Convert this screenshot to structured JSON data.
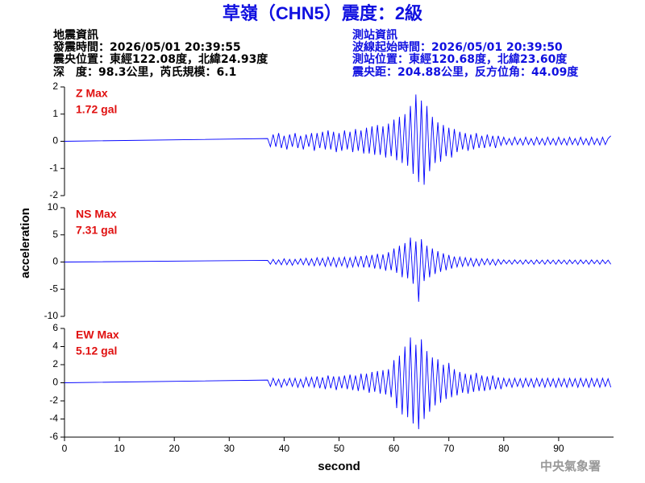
{
  "header": {
    "title": "草嶺（CHN5）震度：2級",
    "left": [
      "地震資訊",
      "發震時間：2026/05/01 20:39:55",
      "震央位置：東經122.08度，北緯24.93度",
      "深　度：98.3公里，芮氏規模：6.1"
    ],
    "right": [
      "測站資訊",
      "波線起始時間：2026/05/01 20:39:50",
      "測站位置：東經120.68度，北緯23.60度",
      "震央距：204.88公里，反方位角：44.09度"
    ]
  },
  "footer": "中央氣象署",
  "ylabel": "acceleration",
  "chart_data": [
    {
      "type": "line",
      "annotations": [
        "Z Max",
        "1.72 gal"
      ],
      "color": "#0000ff",
      "xlim": [
        0,
        100
      ],
      "ylim": [
        -2,
        2
      ],
      "yticks": [
        -2,
        -1,
        0,
        1,
        2
      ],
      "x": [
        0,
        37,
        37.5,
        38,
        38.5,
        39,
        39.5,
        40,
        40.5,
        41,
        41.5,
        42,
        42.5,
        43,
        43.5,
        44,
        44.5,
        45,
        45.5,
        46,
        46.5,
        47,
        47.5,
        48,
        48.5,
        49,
        49.5,
        50,
        50.5,
        51,
        51.5,
        52,
        52.5,
        53,
        53.5,
        54,
        54.5,
        55,
        55.5,
        56,
        56.5,
        57,
        57.5,
        58,
        58.5,
        59,
        59.5,
        60,
        60.5,
        61,
        61.5,
        62,
        62.5,
        63,
        63.5,
        64,
        64.5,
        65,
        65.5,
        66,
        66.5,
        67,
        67.5,
        68,
        68.5,
        69,
        69.5,
        70,
        70.5,
        71,
        71.5,
        72,
        72.5,
        73,
        73.5,
        74,
        74.5,
        75,
        75.5,
        76,
        76.5,
        77,
        77.5,
        78,
        78.5,
        79,
        79.5,
        80,
        80.5,
        81,
        81.5,
        82,
        82.5,
        83,
        83.5,
        84,
        84.5,
        85,
        85.5,
        86,
        86.5,
        87,
        87.5,
        88,
        88.5,
        89,
        89.5,
        90,
        90.5,
        91,
        91.5,
        92,
        92.5,
        93,
        93.5,
        94,
        94.5,
        95,
        95.5,
        96,
        96.5,
        97,
        97.5,
        98,
        98.5,
        99,
        99.5
      ],
      "values": [
        0,
        0.1,
        -0.2,
        0.25,
        -0.2,
        0.3,
        -0.25,
        0.2,
        -0.3,
        0.25,
        -0.2,
        0.3,
        -0.25,
        0.2,
        -0.3,
        0.25,
        -0.2,
        0.3,
        -0.35,
        0.3,
        -0.25,
        0.35,
        -0.3,
        0.4,
        -0.3,
        0.35,
        -0.4,
        0.3,
        -0.35,
        0.4,
        -0.3,
        0.35,
        -0.4,
        0.45,
        -0.35,
        0.4,
        -0.45,
        0.5,
        -0.45,
        0.55,
        -0.5,
        0.6,
        -0.5,
        0.55,
        -0.6,
        0.65,
        -0.55,
        0.8,
        -0.7,
        0.9,
        -0.8,
        1.0,
        -0.9,
        1.3,
        -1.2,
        1.72,
        -1.5,
        1.5,
        -1.6,
        1.3,
        -1.1,
        0.9,
        -0.8,
        0.7,
        -0.75,
        0.6,
        -0.55,
        0.5,
        -0.6,
        0.45,
        -0.4,
        0.35,
        -0.3,
        0.3,
        -0.35,
        0.25,
        -0.3,
        0.3,
        -0.25,
        0.2,
        -0.25,
        0.25,
        -0.2,
        0.2,
        -0.25,
        0.2,
        -0.15,
        0.15,
        -0.12,
        0.1,
        -0.14,
        0.15,
        -0.12,
        0.1,
        -0.14,
        0.15,
        -0.12,
        0.1,
        -0.14,
        0.15,
        -0.12,
        0.1,
        -0.14,
        0.15,
        -0.12,
        0.1,
        -0.14,
        0.15,
        -0.12,
        0.1,
        -0.14,
        0.15,
        -0.12,
        0.1,
        -0.14,
        0.15,
        -0.12,
        0.1,
        -0.14,
        0.15,
        -0.12,
        0.1,
        -0.14,
        0.15,
        -0.12,
        0.1,
        0.2
      ]
    },
    {
      "type": "line",
      "annotations": [
        "NS Max",
        "7.31 gal"
      ],
      "color": "#0000ff",
      "xlim": [
        0,
        100
      ],
      "ylim": [
        -10,
        10
      ],
      "yticks": [
        -10,
        -5,
        0,
        5,
        10
      ],
      "x": [
        0,
        37,
        37.5,
        38,
        38.5,
        39,
        39.5,
        40,
        40.5,
        41,
        41.5,
        42,
        42.5,
        43,
        43.5,
        44,
        44.5,
        45,
        45.5,
        46,
        46.5,
        47,
        47.5,
        48,
        48.5,
        49,
        49.5,
        50,
        50.5,
        51,
        51.5,
        52,
        52.5,
        53,
        53.5,
        54,
        54.5,
        55,
        55.5,
        56,
        56.5,
        57,
        57.5,
        58,
        58.5,
        59,
        59.5,
        60,
        60.5,
        61,
        61.5,
        62,
        62.5,
        63,
        63.5,
        64,
        64.5,
        65,
        65.5,
        66,
        66.5,
        67,
        67.5,
        68,
        68.5,
        69,
        69.5,
        70,
        70.5,
        71,
        71.5,
        72,
        72.5,
        73,
        73.5,
        74,
        74.5,
        75,
        75.5,
        76,
        76.5,
        77,
        77.5,
        78,
        78.5,
        79,
        79.5,
        80,
        80.5,
        81,
        81.5,
        82,
        82.5,
        83,
        83.5,
        84,
        84.5,
        85,
        85.5,
        86,
        86.5,
        87,
        87.5,
        88,
        88.5,
        89,
        89.5,
        90,
        90.5,
        91,
        91.5,
        92,
        92.5,
        93,
        93.5,
        94,
        94.5,
        95,
        95.5,
        96,
        96.5,
        97,
        97.5,
        98,
        98.5,
        99,
        99.5
      ],
      "values": [
        0,
        0.3,
        -0.4,
        0.5,
        -0.4,
        0.4,
        -0.5,
        0.6,
        -0.5,
        0.5,
        -0.6,
        0.5,
        -0.4,
        0.6,
        -0.5,
        0.7,
        -0.6,
        0.6,
        -0.7,
        0.8,
        -0.6,
        0.7,
        -0.8,
        0.9,
        -0.7,
        0.8,
        -0.9,
        0.8,
        -0.7,
        0.9,
        -1.0,
        0.8,
        -0.9,
        1.0,
        -0.8,
        1.1,
        -1.0,
        1.2,
        -1.0,
        1.3,
        -1.2,
        1.5,
        -1.3,
        1.4,
        -1.6,
        1.8,
        -1.5,
        2.5,
        -2.0,
        3.0,
        -2.8,
        3.5,
        -3.0,
        4.5,
        -4.0,
        3.8,
        -7.31,
        4.2,
        -3.5,
        3.0,
        -2.8,
        2.5,
        -2.2,
        2.0,
        -1.8,
        1.6,
        -1.5,
        1.3,
        -1.2,
        1.0,
        -0.9,
        0.9,
        -0.8,
        0.8,
        -0.7,
        0.7,
        -0.8,
        0.6,
        -0.7,
        0.6,
        -0.5,
        0.6,
        -0.5,
        0.5,
        -0.6,
        0.5,
        -0.4,
        0.4,
        -0.3,
        0.35,
        -0.4,
        0.4,
        -0.3,
        0.35,
        -0.4,
        0.4,
        -0.3,
        0.35,
        -0.4,
        0.4,
        -0.3,
        0.35,
        -0.4,
        0.4,
        -0.3,
        0.35,
        -0.4,
        0.4,
        -0.3,
        0.35,
        -0.4,
        0.4,
        -0.3,
        0.35,
        -0.4,
        0.4,
        -0.3,
        0.35,
        -0.4,
        0.4,
        -0.3,
        0.35,
        -0.4,
        0.4,
        -0.3,
        0.35,
        -0.4
      ]
    },
    {
      "type": "line",
      "annotations": [
        "EW Max",
        "5.12 gal"
      ],
      "color": "#0000ff",
      "xlim": [
        0,
        100
      ],
      "ylim": [
        -6,
        6
      ],
      "yticks": [
        -6,
        -4,
        -2,
        0,
        2,
        4,
        6
      ],
      "xticks": [
        0,
        10,
        20,
        30,
        40,
        50,
        60,
        70,
        80,
        90
      ],
      "xlabel": "second",
      "x": [
        0,
        37,
        37.5,
        38,
        38.5,
        39,
        39.5,
        40,
        40.5,
        41,
        41.5,
        42,
        42.5,
        43,
        43.5,
        44,
        44.5,
        45,
        45.5,
        46,
        46.5,
        47,
        47.5,
        48,
        48.5,
        49,
        49.5,
        50,
        50.5,
        51,
        51.5,
        52,
        52.5,
        53,
        53.5,
        54,
        54.5,
        55,
        55.5,
        56,
        56.5,
        57,
        57.5,
        58,
        58.5,
        59,
        59.5,
        60,
        60.5,
        61,
        61.5,
        62,
        62.5,
        63,
        63.5,
        64,
        64.5,
        65,
        65.5,
        66,
        66.5,
        67,
        67.5,
        68,
        68.5,
        69,
        69.5,
        70,
        70.5,
        71,
        71.5,
        72,
        72.5,
        73,
        73.5,
        74,
        74.5,
        75,
        75.5,
        76,
        76.5,
        77,
        77.5,
        78,
        78.5,
        79,
        79.5,
        80,
        80.5,
        81,
        81.5,
        82,
        82.5,
        83,
        83.5,
        84,
        84.5,
        85,
        85.5,
        86,
        86.5,
        87,
        87.5,
        88,
        88.5,
        89,
        89.5,
        90,
        90.5,
        91,
        91.5,
        92,
        92.5,
        93,
        93.5,
        94,
        94.5,
        95,
        95.5,
        96,
        96.5,
        97,
        97.5,
        98,
        98.5,
        99,
        99.5
      ],
      "values": [
        0,
        0.3,
        -0.4,
        0.5,
        -0.3,
        0.4,
        -0.5,
        0.4,
        -0.3,
        0.5,
        -0.4,
        0.5,
        -0.5,
        0.4,
        -0.5,
        0.6,
        -0.4,
        0.6,
        -0.5,
        0.7,
        -0.6,
        0.6,
        -0.7,
        0.8,
        -0.6,
        0.7,
        -0.8,
        0.7,
        -0.6,
        0.8,
        -0.7,
        0.9,
        -0.8,
        0.8,
        -0.9,
        1.0,
        -0.8,
        1.0,
        -1.1,
        1.2,
        -1.0,
        1.3,
        -1.2,
        1.4,
        -1.3,
        1.5,
        -1.6,
        2.5,
        -2.8,
        3.0,
        -3.5,
        4.0,
        -3.8,
        5.0,
        -4.5,
        4.2,
        -5.12,
        4.8,
        -4.0,
        3.5,
        -3.2,
        2.8,
        -2.5,
        2.6,
        -2.2,
        2.0,
        -1.8,
        2.2,
        -1.6,
        1.5,
        -1.4,
        1.2,
        -1.1,
        1.0,
        -1.2,
        0.9,
        -1.0,
        1.1,
        -0.9,
        0.8,
        -0.9,
        0.7,
        -0.8,
        0.8,
        -0.7,
        0.6,
        -0.7,
        0.5,
        -0.4,
        0.45,
        -0.5,
        0.5,
        -0.4,
        0.45,
        -0.5,
        0.5,
        -0.4,
        0.45,
        -0.5,
        0.5,
        -0.4,
        0.45,
        -0.5,
        0.5,
        -0.4,
        0.45,
        -0.5,
        0.5,
        -0.4,
        0.45,
        -0.5,
        0.5,
        -0.4,
        0.45,
        -0.5,
        0.5,
        -0.4,
        0.45,
        -0.5,
        0.5,
        -0.4,
        0.45,
        -0.5,
        0.5,
        -0.4,
        0.45,
        -0.5
      ]
    }
  ]
}
